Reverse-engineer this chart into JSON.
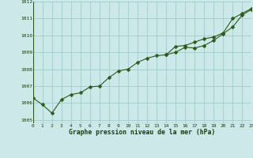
{
  "title": "Graphe pression niveau de la mer (hPa)",
  "x": [
    0,
    1,
    2,
    3,
    4,
    5,
    6,
    7,
    8,
    9,
    10,
    11,
    12,
    13,
    14,
    15,
    16,
    17,
    18,
    19,
    20,
    21,
    22,
    23
  ],
  "line1": [
    1006.3,
    1005.9,
    1005.4,
    1006.2,
    1006.5,
    1006.6,
    1006.95,
    1007.0,
    1007.5,
    1007.9,
    1008.0,
    1008.4,
    1008.65,
    1008.8,
    1008.85,
    1009.0,
    1009.3,
    1009.25,
    1009.4,
    1009.7,
    1010.1,
    1010.5,
    1011.2,
    1011.55
  ],
  "line2": [
    null,
    null,
    null,
    null,
    null,
    null,
    null,
    null,
    null,
    null,
    null,
    null,
    null,
    null,
    1008.85,
    1009.35,
    1009.4,
    1009.6,
    1009.8,
    1009.9,
    1010.15,
    1011.0,
    1011.3,
    1011.6
  ],
  "ylim": [
    1004.8,
    1012.0
  ],
  "xlim": [
    0,
    23
  ],
  "yticks": [
    1005,
    1006,
    1007,
    1008,
    1009,
    1010,
    1011,
    1012
  ],
  "xticks": [
    0,
    1,
    2,
    3,
    4,
    5,
    6,
    7,
    8,
    9,
    10,
    11,
    12,
    13,
    14,
    15,
    16,
    17,
    18,
    19,
    20,
    21,
    22,
    23
  ],
  "line_color": "#2d5a1b",
  "bg_color": "#cce8e8",
  "grid_color": "#a0cccc",
  "title_color": "#1a3a0a",
  "marker": "D",
  "markersize": 2.5
}
